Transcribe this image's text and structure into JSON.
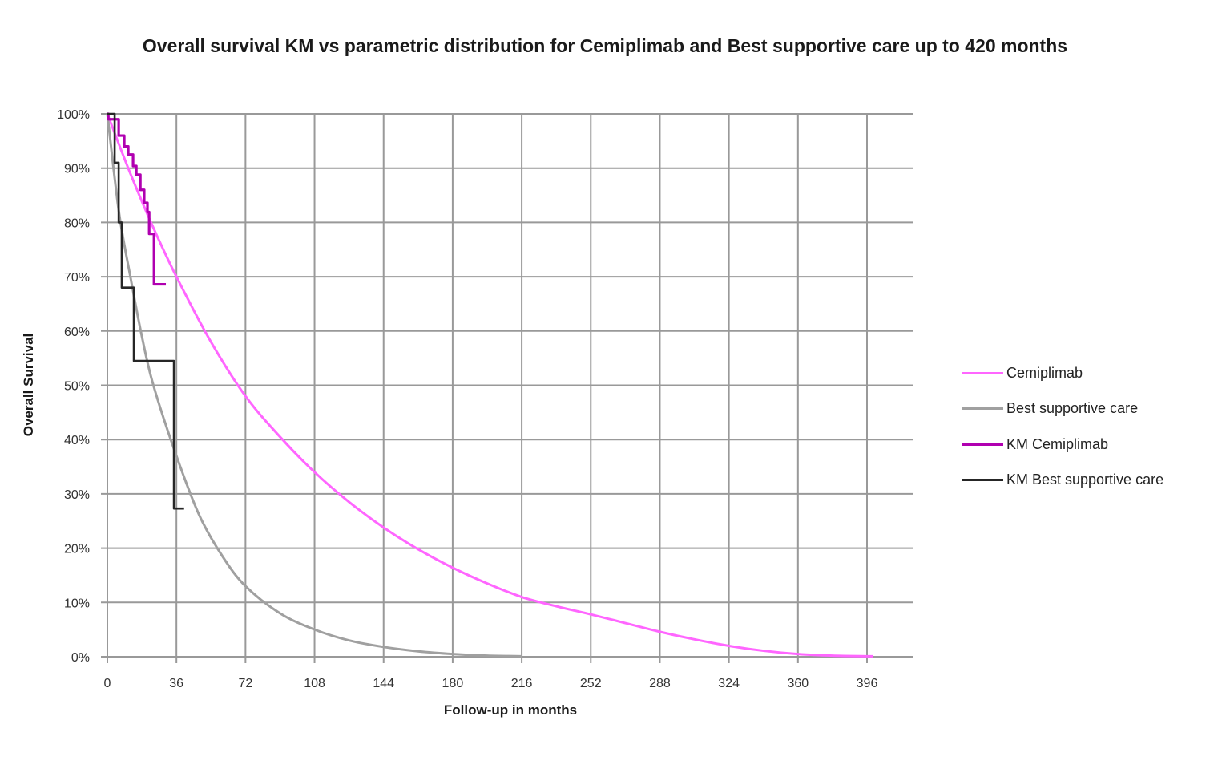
{
  "chart": {
    "title": "Overall survival KM vs parametric distribution for Cemiplimab and Best supportive care up to 420 months",
    "xlabel": "Follow-up in months",
    "ylabel": "Overall Survival"
  },
  "colors": {
    "cemiplimab": "#FF66FF",
    "best_supportive_care": "#A0A0A0",
    "km_cemiplimab": "#B000B0",
    "km_best_supportive_care": "#262626",
    "grid": "#999999"
  },
  "legend": [
    {
      "label": "Cemiplimab",
      "color": "#FF66FF"
    },
    {
      "label": "Best supportive care",
      "color": "#A0A0A0"
    },
    {
      "label": "KM Cemiplimab",
      "color": "#B000B0"
    },
    {
      "label": "KM Best supportive care",
      "color": "#262626"
    }
  ],
  "chart_data": {
    "type": "line",
    "title": "Overall survival KM vs parametric distribution for Cemiplimab and Best supportive care up to 420 months",
    "xlabel": "Follow-up in months",
    "ylabel": "Overall Survival",
    "xlim": [
      0,
      420
    ],
    "ylim": [
      0,
      100
    ],
    "x_ticks": [
      0,
      36,
      72,
      108,
      144,
      180,
      216,
      252,
      288,
      324,
      360,
      396
    ],
    "y_ticks": [
      "0%",
      "10%",
      "20%",
      "30%",
      "40%",
      "50%",
      "60%",
      "70%",
      "80%",
      "90%",
      "100%"
    ],
    "grid": true,
    "legend_position": "right",
    "series": [
      {
        "name": "Cemiplimab",
        "style": "smooth",
        "x": [
          0,
          12,
          24,
          36,
          54,
          72,
          90,
          108,
          126,
          144,
          162,
          180,
          198,
          216,
          234,
          252,
          270,
          288,
          306,
          324,
          342,
          360,
          378,
          396,
          399
        ],
        "y": [
          100,
          89,
          79,
          70,
          58,
          48,
          40.5,
          34,
          28.5,
          23.8,
          19.8,
          16.4,
          13.5,
          11,
          9.3,
          7.8,
          6.2,
          4.6,
          3.2,
          2,
          1.1,
          0.5,
          0.2,
          0.1,
          0.1
        ]
      },
      {
        "name": "Best supportive care",
        "style": "smooth",
        "x": [
          0,
          6,
          12,
          18,
          24,
          36,
          48,
          60,
          72,
          90,
          108,
          126,
          144,
          162,
          180,
          198,
          216
        ],
        "y": [
          100,
          82,
          70,
          59,
          50,
          37,
          26,
          18.5,
          13,
          8,
          5,
          3,
          1.8,
          1,
          0.5,
          0.2,
          0.1
        ]
      },
      {
        "name": "KM Cemiplimab",
        "style": "step",
        "x": [
          0,
          0.5,
          5.9,
          8.8,
          10.9,
          13.4,
          15.1,
          17.2,
          19.2,
          20.9,
          21.8,
          24.3,
          30.5
        ],
        "y": [
          100,
          99,
          96,
          94,
          92.5,
          90.4,
          88.8,
          86,
          83.6,
          81.9,
          77.9,
          68.6,
          68.6
        ]
      },
      {
        "name": "KM Best supportive care",
        "style": "step",
        "x": [
          0,
          3.8,
          5.9,
          7.5,
          13.8,
          34.7,
          40
        ],
        "y": [
          100,
          91,
          80,
          68,
          54.5,
          27.3,
          27.3
        ]
      }
    ]
  }
}
